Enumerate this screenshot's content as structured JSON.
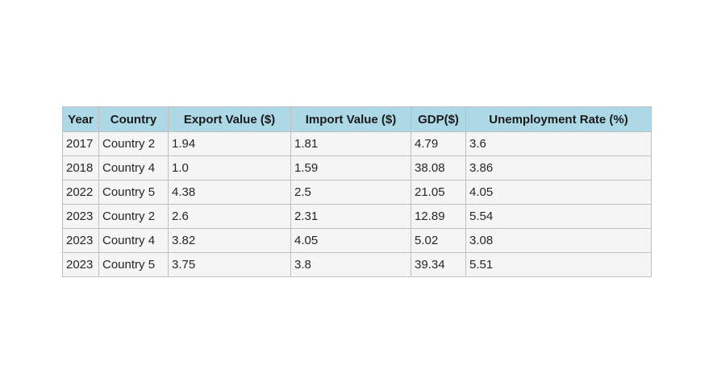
{
  "chart_data": {
    "type": "table",
    "columns": [
      "Year",
      "Country",
      "Export Value ($)",
      "Import Value ($)",
      "GDP($)",
      "Unemployment Rate (%)"
    ],
    "rows": [
      [
        "2017",
        "Country 2",
        "1.94",
        "1.81",
        "4.79",
        "3.6"
      ],
      [
        "2018",
        "Country 4",
        "1.0",
        "1.59",
        "38.08",
        "3.86"
      ],
      [
        "2022",
        "Country 5",
        "4.38",
        "2.5",
        "21.05",
        "4.05"
      ],
      [
        "2023",
        "Country 2",
        "2.6",
        "2.31",
        "12.89",
        "5.54"
      ],
      [
        "2023",
        "Country 4",
        "3.82",
        "4.05",
        "5.02",
        "3.08"
      ],
      [
        "2023",
        "Country 5",
        "3.75",
        "3.8",
        "39.34",
        "5.51"
      ]
    ],
    "header_color": "#add8e6",
    "cell_color": "#f5f5f5",
    "border_color": "#bfbfbf"
  }
}
